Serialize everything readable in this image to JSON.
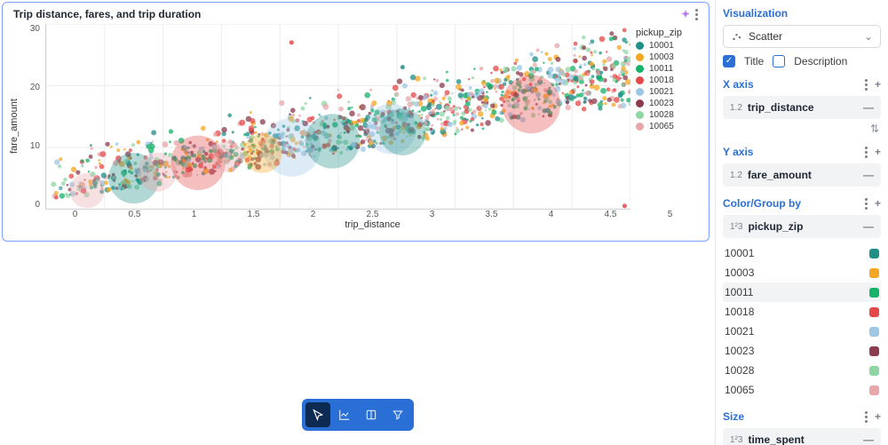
{
  "chart": {
    "title": "Trip distance, fares, and trip duration",
    "type": "scatter",
    "x_label": "trip_distance",
    "y_label": "fare_amount",
    "xlim": [
      0,
      5
    ],
    "ylim": [
      0,
      30
    ],
    "x_ticks": [
      "0",
      "0.5",
      "1",
      "1.5",
      "2",
      "2.5",
      "3",
      "3.5",
      "4",
      "4.5",
      "5"
    ],
    "y_ticks": [
      "30",
      "20",
      "10",
      "0"
    ],
    "grid_color": "#eceef2",
    "axis_color": "#cfd3db",
    "background_color": "#ffffff",
    "legend_title": "pickup_zip",
    "legend": [
      {
        "label": "10001",
        "color": "#1f8f88"
      },
      {
        "label": "10003",
        "color": "#f5a623"
      },
      {
        "label": "10011",
        "color": "#17b26a"
      },
      {
        "label": "10018",
        "color": "#e44848"
      },
      {
        "label": "10021",
        "color": "#9dc7e4"
      },
      {
        "label": "10023",
        "color": "#8d3b4f"
      },
      {
        "label": "10028",
        "color": "#8fd6a5"
      },
      {
        "label": "10065",
        "color": "#e7a6a8"
      }
    ]
  },
  "panel": {
    "title": "Visualization",
    "viz_type": "Scatter",
    "title_checkbox": "Title",
    "desc_checkbox": "Description",
    "xaxis_label": "X axis",
    "yaxis_label": "Y axis",
    "color_label": "Color/Group by",
    "size_label": "Size",
    "x_field": {
      "type": "1.2",
      "name": "trip_distance"
    },
    "y_field": {
      "type": "1.2",
      "name": "fare_amount"
    },
    "color_field": {
      "type": "1²3",
      "name": "pickup_zip"
    },
    "size_field": {
      "type": "1²3",
      "name": "time_spent"
    },
    "colors": [
      {
        "label": "10001",
        "color": "#1f8f88"
      },
      {
        "label": "10003",
        "color": "#f5a623"
      },
      {
        "label": "10011",
        "color": "#17b26a",
        "hover": true
      },
      {
        "label": "10018",
        "color": "#e44848"
      },
      {
        "label": "10021",
        "color": "#9dc7e4"
      },
      {
        "label": "10023",
        "color": "#8d3b4f"
      },
      {
        "label": "10028",
        "color": "#8fd6a5"
      },
      {
        "label": "10065",
        "color": "#e7a6a8"
      }
    ]
  },
  "toolbar_color": "#2a6fd6"
}
